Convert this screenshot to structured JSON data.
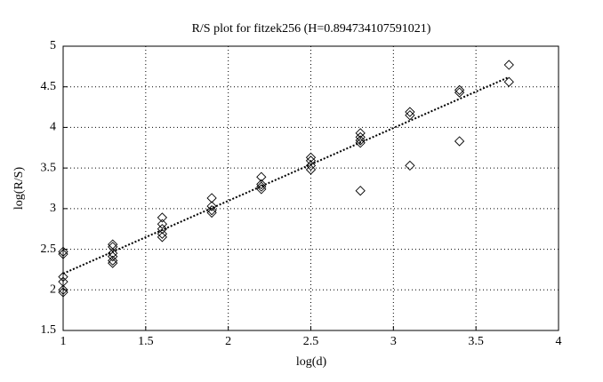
{
  "chart_data": {
    "type": "scatter",
    "title": "R/S plot for fitzek256 (H=0.894734107591021)",
    "xlabel": "log(d)",
    "ylabel": "log(R/S)",
    "xlim": [
      1,
      4
    ],
    "xticks": [
      1,
      1.5,
      2,
      2.5,
      3,
      3.5,
      4
    ],
    "ylim": [
      1.5,
      5
    ],
    "yticks": [
      1.5,
      2,
      2.5,
      3,
      3.5,
      4,
      4.5,
      5
    ],
    "grid": true,
    "series": [
      {
        "kind": "points",
        "marker": "diamond",
        "color": "#000000",
        "x": [
          1,
          1,
          1,
          1,
          1,
          1,
          1.3,
          1.3,
          1.3,
          1.3,
          1.3,
          1.3,
          1.6,
          1.6,
          1.6,
          1.6,
          1.6,
          1.9,
          1.9,
          1.9,
          1.9,
          2.2,
          2.2,
          2.2,
          2.2,
          2.5,
          2.5,
          2.5,
          2.5,
          2.8,
          2.8,
          2.8,
          2.8,
          2.8,
          3.1,
          3.1,
          3.1,
          3.4,
          3.4,
          3.4,
          3.7,
          3.7
        ],
        "values": [
          2.47,
          2.44,
          2.16,
          2.1,
          2.0,
          1.97,
          2.56,
          2.53,
          2.45,
          2.41,
          2.36,
          2.33,
          2.89,
          2.81,
          2.75,
          2.69,
          2.65,
          3.13,
          3.03,
          2.98,
          2.95,
          3.39,
          3.3,
          3.27,
          3.24,
          3.63,
          3.59,
          3.53,
          3.48,
          3.93,
          3.88,
          3.84,
          3.81,
          3.22,
          4.19,
          4.15,
          3.53,
          4.46,
          4.43,
          3.83,
          4.77,
          4.56
        ]
      },
      {
        "kind": "line",
        "style": "dotted",
        "color": "#000000",
        "x": [
          1,
          3.7
        ],
        "values": [
          2.2,
          4.62
        ]
      }
    ]
  }
}
